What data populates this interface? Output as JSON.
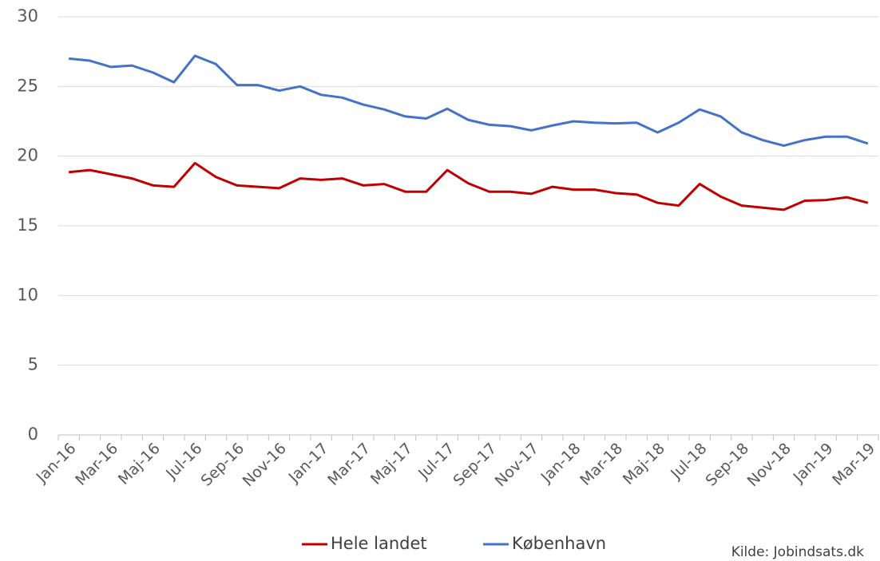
{
  "chart_data": {
    "type": "line",
    "categories": [
      "Jan-16",
      null,
      "Mar-16",
      null,
      "Maj-16",
      null,
      "Jul-16",
      null,
      "Sep-16",
      null,
      "Nov-16",
      null,
      "Jan-17",
      null,
      "Mar-17",
      null,
      "Maj-17",
      null,
      "Jul-17",
      null,
      "Sep-17",
      null,
      "Nov-17",
      null,
      "Jan-18",
      null,
      "Mar-18",
      null,
      "Maj-18",
      null,
      "Jul-18",
      null,
      "Sep-18",
      null,
      "Nov-18",
      null,
      "Jan-19",
      null,
      "Mar-19"
    ],
    "series": [
      {
        "name": "Hele landet",
        "color": "#c00000",
        "values": [
          18.85,
          19.0,
          18.7,
          18.4,
          17.9,
          17.8,
          19.5,
          18.5,
          17.9,
          17.8,
          17.7,
          18.4,
          18.3,
          18.4,
          17.9,
          18.0,
          17.45,
          17.45,
          19.0,
          18.05,
          17.45,
          17.45,
          17.3,
          17.8,
          17.6,
          17.6,
          17.35,
          17.25,
          16.65,
          16.45,
          18.0,
          17.1,
          16.45,
          16.3,
          16.15,
          16.8,
          16.85,
          17.05,
          16.65
        ]
      },
      {
        "name": "København",
        "color": "#4472c4",
        "values": [
          27.0,
          26.85,
          26.4,
          26.5,
          26.0,
          25.3,
          27.2,
          26.6,
          25.1,
          25.1,
          24.7,
          25.0,
          24.4,
          24.2,
          23.7,
          23.35,
          22.85,
          22.7,
          23.4,
          22.6,
          22.25,
          22.15,
          21.85,
          22.2,
          22.5,
          22.4,
          22.35,
          22.4,
          21.7,
          22.4,
          23.35,
          22.85,
          21.7,
          21.15,
          20.75,
          21.15,
          21.4,
          21.4,
          20.9
        ]
      }
    ],
    "ylim": [
      0,
      30
    ],
    "yticks": [
      0,
      5,
      10,
      15,
      20,
      25,
      30
    ],
    "grid": true,
    "legend": "bottom",
    "source": "Kilde:  Jobindsats.dk"
  }
}
